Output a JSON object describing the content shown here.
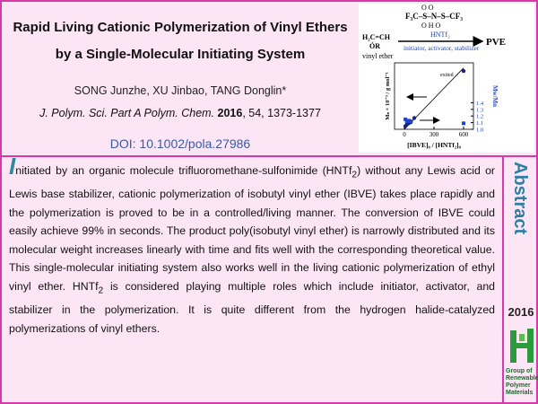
{
  "header": {
    "title": "Rapid Living Cationic Polymerization of Vinyl Ethers by a Single-Molecular Initiating System",
    "authors": "SONG Junzhe, XU Jinbao, TANG Donglin*",
    "journal": {
      "name": "J. Polym. Sci. Part A Polym. Chem.",
      "year": "2016",
      "details": ", 54, 1373-1377"
    },
    "doi": "DOI: 10.1002/pola.27986"
  },
  "graphic": {
    "scheme": {
      "reagent_top": "O    O",
      "reagent": "F₃C–S–N–S–CF₃",
      "reagent_bottom": "O  H  O",
      "reagent_name": "HNTf₂",
      "monomer": "H₂C=CH",
      "monomer_group": "ÓR",
      "monomer_name": "vinyl ether",
      "roles": "initiator, activator, stabilizer",
      "product": "PVE"
    },
    "plot": {
      "xlabel": "[IBVE]₀ / [HNTf₂]₀",
      "ylabel": "Mₙ × 10⁻³ / g mol⁻¹",
      "y2label": "Mw/Mn",
      "annotation": "exited",
      "xlim": [
        -100,
        700
      ],
      "xticks": [
        0,
        300,
        600
      ],
      "ylim": [
        0,
        65
      ],
      "y2lim": [
        1.0,
        2.0
      ],
      "y2ticks": [
        {
          "value": 1,
          "label": "1.0"
        },
        1.1,
        1.2,
        1.3,
        1.4
      ],
      "fit": {
        "x": [
          0,
          600
        ],
        "values": [
          0,
          60
        ]
      },
      "series": [
        {
          "name": "Mn",
          "color": "#1a237e",
          "shape": "circle",
          "x": [
            10,
            25,
            45,
            65,
            100,
            600
          ],
          "values": [
            3,
            5,
            6,
            7,
            11,
            57
          ]
        },
        {
          "name": "Mw/Mn",
          "color": "#2244cc",
          "shape": "square",
          "axis": "y2",
          "x": [
            10,
            25,
            45,
            65,
            600
          ],
          "values": [
            1.15,
            1.12,
            1.13,
            1.12,
            1.09
          ]
        }
      ]
    }
  },
  "abstract": {
    "segments": [
      "I",
      "nitiated by an organic molecule trifluoromethane-sulfonimide (HNTf",
      "2",
      ") without any Lewis acid or Lewis base stabilizer, cationic polymerization of isobutyl vinyl ether (IBVE) takes place rapidly and the polymerization is proved to be in a controlled/living manner. The conversion of IBVE could easily achieve 99% in seconds. The product poly(isobutyl vinyl ether) is narrowly distributed and its molecular weight increases linearly with time and fits well with the corresponding theoretical value. This single-molecular initiating system also works well in the living cationic polymerization of ethyl vinyl ether. HNTf",
      "2",
      " is considered playing multiple roles which include initiator, activator, and stabilizer in the polymerization. It is quite different from the hydrogen halide-catalyzed polymerizations of vinyl ethers."
    ]
  },
  "sidebar": {
    "heading": "Abstract",
    "year": "2016",
    "group": [
      "Group of",
      "Renewable",
      "Polymer",
      "Materials"
    ]
  }
}
